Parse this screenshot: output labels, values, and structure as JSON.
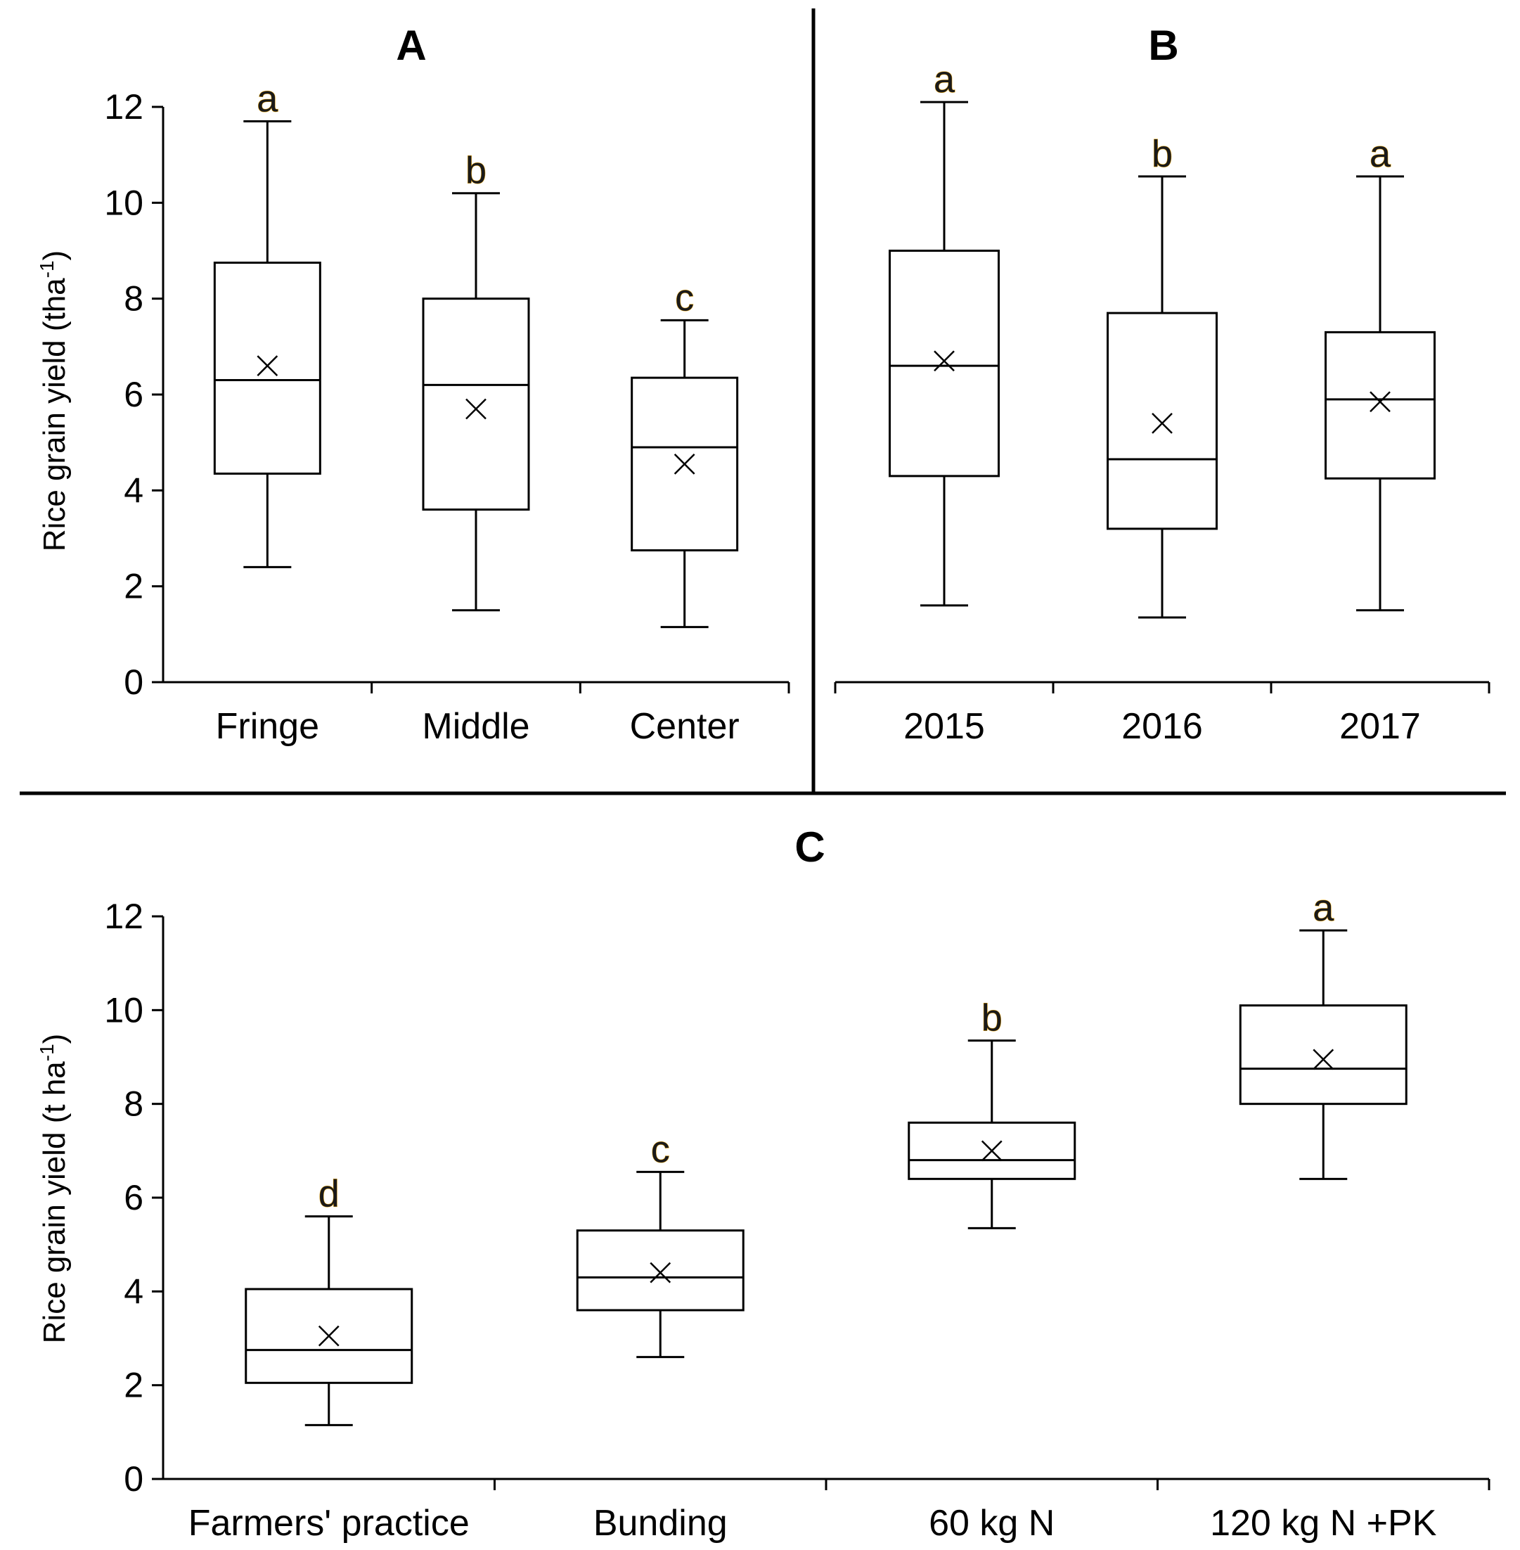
{
  "colors": {
    "letter_fill": "#1a1a1a",
    "letter_shadow": "#e8a000",
    "line": "#000000"
  },
  "chart_data": [
    {
      "id": "A",
      "type": "boxplot",
      "title": "A",
      "ylabel": "Rice grain  yield (tha-1)",
      "ylabel_main": "Rice grain  yield (tha",
      "ylabel_sup": "-1",
      "ylabel_tail": ")",
      "ylim": [
        0,
        12
      ],
      "yticks": [
        "0",
        "2",
        "4",
        "6",
        "8",
        "10",
        "12"
      ],
      "categories": [
        "Fringe",
        "Middle",
        "Center"
      ],
      "series": [
        {
          "name": "Fringe",
          "min": 2.4,
          "q1": 4.35,
          "median": 6.3,
          "q3": 8.75,
          "max": 11.7,
          "mean": 6.6,
          "letter": "a"
        },
        {
          "name": "Middle",
          "min": 1.5,
          "q1": 3.6,
          "median": 6.2,
          "q3": 8.0,
          "max": 10.2,
          "mean": 5.7,
          "letter": "b"
        },
        {
          "name": "Center",
          "min": 1.15,
          "q1": 2.75,
          "median": 4.9,
          "q3": 6.35,
          "max": 7.55,
          "mean": 4.55,
          "letter": "c"
        }
      ]
    },
    {
      "id": "B",
      "type": "boxplot",
      "title": "B",
      "ylim": [
        0,
        12
      ],
      "categories": [
        "2015",
        "2016",
        "2017"
      ],
      "series": [
        {
          "name": "2015",
          "min": 1.6,
          "q1": 4.3,
          "median": 6.6,
          "q3": 9.0,
          "max": 12.1,
          "mean": 6.7,
          "letter": "a"
        },
        {
          "name": "2016",
          "min": 1.35,
          "q1": 3.2,
          "median": 4.65,
          "q3": 7.7,
          "max": 10.55,
          "mean": 5.4,
          "letter": "b"
        },
        {
          "name": "2017",
          "min": 1.5,
          "q1": 4.25,
          "median": 5.9,
          "q3": 7.3,
          "max": 10.55,
          "mean": 5.85,
          "letter": "a"
        }
      ]
    },
    {
      "id": "C",
      "type": "boxplot",
      "title": "C",
      "ylabel": "Rice grain  yield (t ha-1)",
      "ylabel_main": "Rice grain  yield (t ha",
      "ylabel_sup": "-1",
      "ylabel_tail": ")",
      "ylim": [
        0,
        12
      ],
      "yticks": [
        "0",
        "2",
        "4",
        "6",
        "8",
        "10",
        "12"
      ],
      "categories": [
        "Farmers' practice",
        "Bunding",
        "60 kg N",
        "120 kg N +PK"
      ],
      "series": [
        {
          "name": "Farmers' practice",
          "min": 1.15,
          "q1": 2.05,
          "median": 2.75,
          "q3": 4.05,
          "max": 5.6,
          "mean": 3.05,
          "letter": "d"
        },
        {
          "name": "Bunding",
          "min": 2.6,
          "q1": 3.6,
          "median": 4.3,
          "q3": 5.3,
          "max": 6.55,
          "mean": 4.4,
          "letter": "c"
        },
        {
          "name": "60 kg N",
          "min": 5.35,
          "q1": 6.4,
          "median": 6.8,
          "q3": 7.6,
          "max": 9.35,
          "mean": 7.0,
          "letter": "b"
        },
        {
          "name": "120 kg N +PK",
          "min": 6.4,
          "q1": 8.0,
          "median": 8.75,
          "q3": 10.1,
          "max": 11.7,
          "mean": 8.95,
          "letter": "a"
        }
      ]
    }
  ]
}
